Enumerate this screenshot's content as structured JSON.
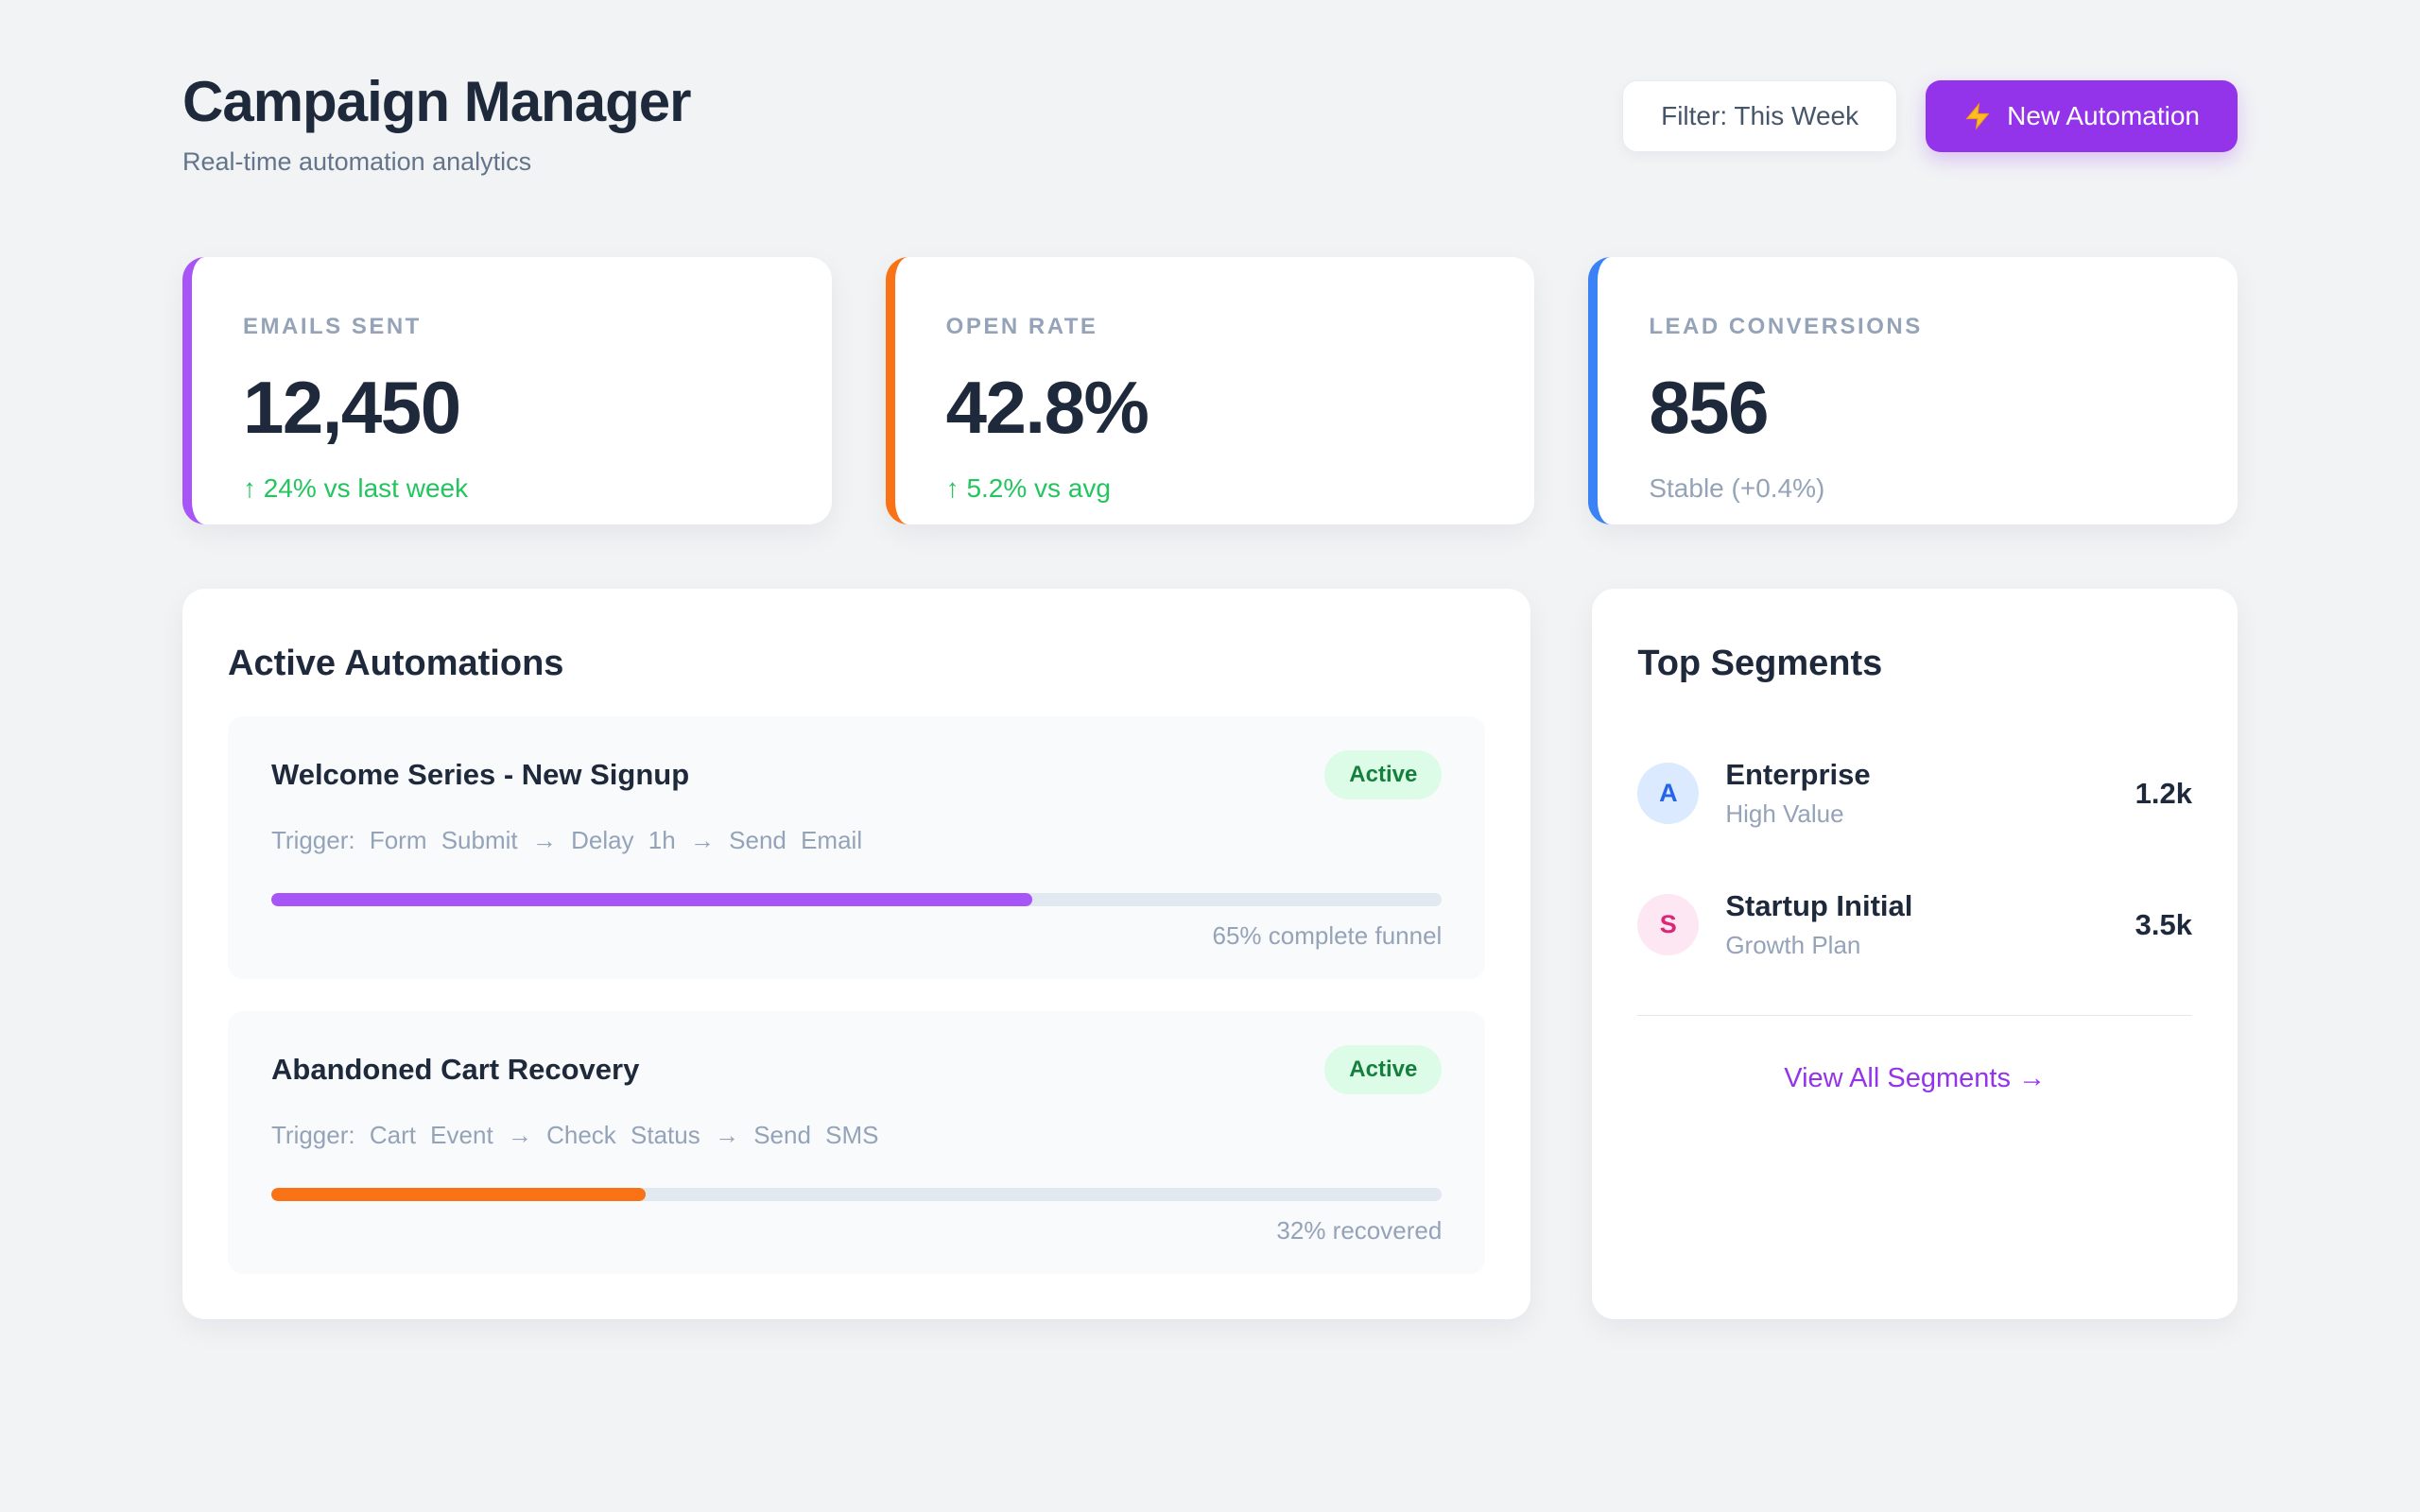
{
  "header": {
    "title": "Campaign Manager",
    "subtitle": "Real-time automation analytics",
    "filter_label": "Filter: This Week",
    "new_automation_label": "New Automation"
  },
  "colors": {
    "accent_purple": "#9333ea",
    "progress_purple": "#a855f7",
    "progress_orange": "#f97316",
    "accent_blue": "#3b82f6",
    "positive_green": "#22c55e",
    "muted_gray": "#94a3b8"
  },
  "stats": [
    {
      "label": "EMAILS SENT",
      "value": "12,450",
      "delta": "↑ 24% vs last week",
      "delta_color": "#22c55e",
      "accent": "#a855f7"
    },
    {
      "label": "OPEN RATE",
      "value": "42.8%",
      "delta": "↑ 5.2% vs avg",
      "delta_color": "#22c55e",
      "accent": "#f97316"
    },
    {
      "label": "LEAD CONVERSIONS",
      "value": "856",
      "delta": "Stable (+0.4%)",
      "delta_color": "#94a3b8",
      "accent": "#3b82f6"
    }
  ],
  "automations": {
    "title": "Active Automations",
    "items": [
      {
        "name": "Welcome Series - New Signup",
        "status": "Active",
        "flow": "Trigger: Form Submit → Delay 1h → Send Email",
        "progress_pct": 65,
        "progress_color": "#a855f7",
        "caption": "65% complete funnel"
      },
      {
        "name": "Abandoned Cart Recovery",
        "status": "Active",
        "flow": "Trigger: Cart Event → Check Status → Send SMS",
        "progress_pct": 32,
        "progress_color": "#f97316",
        "caption": "32% recovered"
      }
    ]
  },
  "segments": {
    "title": "Top Segments",
    "items": [
      {
        "initial": "A",
        "name": "Enterprise",
        "desc": "High Value",
        "value": "1.2k",
        "avatar_bg": "#dbeafe",
        "avatar_fg": "#2563eb"
      },
      {
        "initial": "S",
        "name": "Startup Initial",
        "desc": "Growth Plan",
        "value": "3.5k",
        "avatar_bg": "#fce7f3",
        "avatar_fg": "#db2777"
      }
    ],
    "view_all_label": "View All Segments →"
  }
}
